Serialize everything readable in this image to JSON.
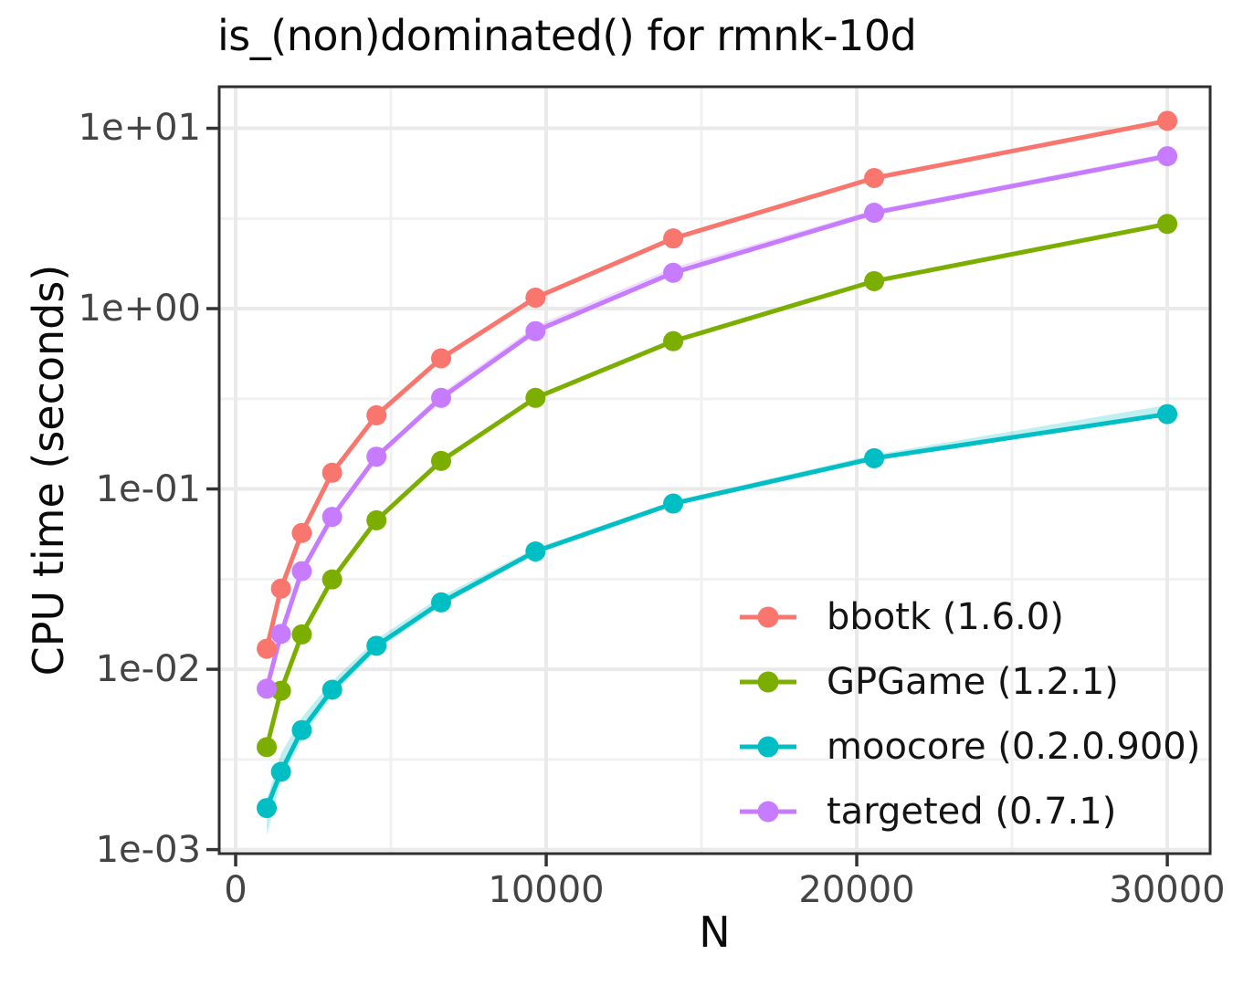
{
  "chart_data": {
    "type": "line",
    "title": "is_(non)dominated() for rmnk-10d",
    "xlabel": "N",
    "ylabel": "CPU time (seconds)",
    "x": [
      1000,
      1459,
      2130,
      3107,
      4534,
      6616,
      9655,
      14089,
      20560,
      30000
    ],
    "series": [
      {
        "id": "bbotk",
        "name": "bbotk (1.6.0)",
        "color": "#F8766D",
        "values": [
          0.013,
          0.028,
          0.057,
          0.123,
          0.256,
          0.53,
          1.15,
          2.45,
          5.3,
          11.0
        ],
        "ribbon_lo": [
          0.0122,
          0.0272,
          0.0555,
          0.12,
          0.251,
          0.52,
          1.13,
          2.41,
          5.2,
          10.8
        ],
        "ribbon_hi": [
          0.015,
          0.0293,
          0.0592,
          0.127,
          0.262,
          0.545,
          1.18,
          2.5,
          5.45,
          11.3
        ]
      },
      {
        "id": "gpgame",
        "name": "GPGame (1.2.1)",
        "color": "#7CAE00",
        "values": [
          0.0037,
          0.0076,
          0.0156,
          0.0315,
          0.067,
          0.143,
          0.32,
          0.66,
          1.42,
          2.95
        ],
        "ribbon_lo": [
          0.0035,
          0.0074,
          0.0152,
          0.0308,
          0.0655,
          0.14,
          0.314,
          0.648,
          1.39,
          2.89
        ],
        "ribbon_hi": [
          0.0039,
          0.0079,
          0.0161,
          0.0323,
          0.0688,
          0.147,
          0.328,
          0.675,
          1.45,
          3.02
        ]
      },
      {
        "id": "moocore",
        "name": "moocore (0.2.0.900)",
        "color": "#00BFC4",
        "values": [
          0.0017,
          0.0027,
          0.0046,
          0.0077,
          0.0135,
          0.0235,
          0.045,
          0.083,
          0.148,
          0.26
        ],
        "ribbon_lo": [
          0.0012,
          0.0024,
          0.0041,
          0.0072,
          0.0128,
          0.0225,
          0.0438,
          0.0815,
          0.1455,
          0.253
        ],
        "ribbon_hi": [
          0.0019,
          0.0034,
          0.0054,
          0.0086,
          0.0147,
          0.0254,
          0.047,
          0.0857,
          0.155,
          0.292
        ]
      },
      {
        "id": "targeted",
        "name": "targeted (0.7.1)",
        "color": "#C77CFF",
        "values": [
          0.0078,
          0.0157,
          0.035,
          0.07,
          0.151,
          0.32,
          0.75,
          1.58,
          3.4,
          7.0
        ],
        "ribbon_lo": [
          0.0075,
          0.0153,
          0.0342,
          0.0685,
          0.148,
          0.313,
          0.735,
          1.55,
          3.33,
          6.85
        ],
        "ribbon_hi": [
          0.0081,
          0.0163,
          0.036,
          0.072,
          0.156,
          0.34,
          0.8,
          1.69,
          3.53,
          7.28
        ]
      }
    ],
    "xaxis": {
      "ticks": [
        0,
        10000,
        20000,
        30000
      ],
      "tick_labels": [
        "0",
        "10000",
        "20000",
        "30000"
      ],
      "minor_ticks": [
        5000,
        15000,
        25000
      ],
      "range": [
        -530,
        31380
      ]
    },
    "yaxis": {
      "scale": "log10",
      "ticks": [
        0.001,
        0.01,
        0.1,
        1,
        10
      ],
      "tick_labels": [
        "1e-03",
        "1e-02",
        "1e-01",
        "1e+00",
        "1e+01"
      ],
      "minor_ticks": [
        0.00316,
        0.0316,
        0.316,
        3.16
      ],
      "range": [
        0.00095,
        17.0
      ]
    },
    "legend": {
      "position": "inside-bottom-right"
    },
    "grid": true,
    "style": {
      "background": "#FFFFFF",
      "panel_border": "#2F2F2F",
      "grid_major": "#EAEAEA",
      "grid_minor": "#F1F1F1",
      "tick_color": "#333333",
      "tick_label_color": "#444444",
      "ribbon_opacity": 0.25
    }
  }
}
